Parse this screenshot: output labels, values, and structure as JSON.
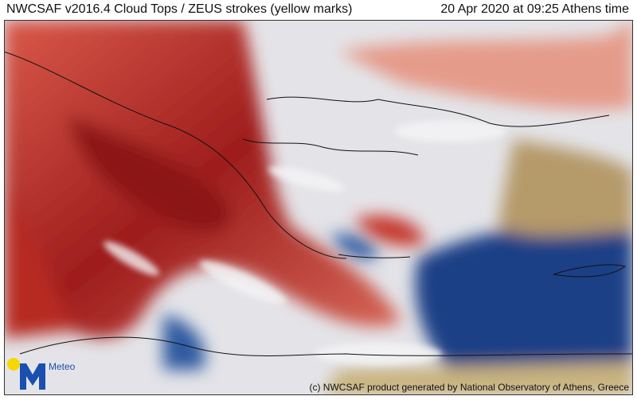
{
  "header": {
    "title": "NWCSAF v2016.4 Cloud Tops / ZEUS strokes (yellow marks)",
    "timestamp": "20 Apr 2020 at 09:25 Athens time"
  },
  "map": {
    "credit": "(c) NWCSAF product generated by National Observatory of Athens, Greece",
    "logo": "Meteo"
  }
}
